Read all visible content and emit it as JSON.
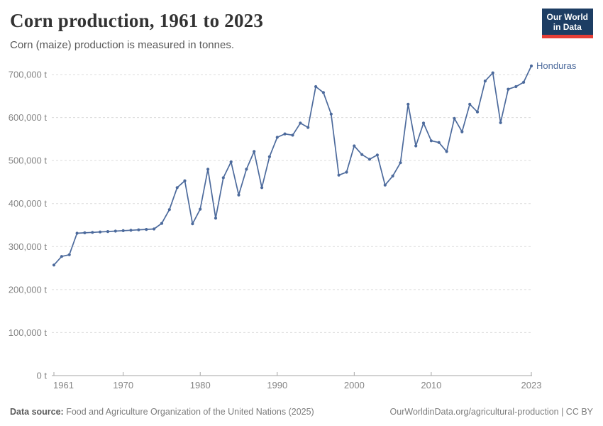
{
  "header": {
    "title": "Corn production, 1961 to 2023",
    "subtitle": "Corn (maize) production is measured in tonnes.",
    "logo": {
      "line1": "Our World",
      "line2": "in Data"
    }
  },
  "chart_data": {
    "type": "line",
    "title": "Corn production, 1961 to 2023",
    "unit": "tonnes",
    "grid": "horizontal-dashed",
    "legend_position": "end-of-line-label",
    "xlim": [
      1961,
      2023
    ],
    "ylim": [
      0,
      700000
    ],
    "x_ticks": [
      1961,
      1970,
      1980,
      1990,
      2000,
      2010,
      2023
    ],
    "y_ticks": [
      0,
      100000,
      200000,
      300000,
      400000,
      500000,
      600000,
      700000
    ],
    "y_tick_labels": [
      "0 t",
      "100,000 t",
      "200,000 t",
      "300,000 t",
      "400,000 t",
      "500,000 t",
      "600,000 t",
      "700,000 t"
    ],
    "series": [
      {
        "name": "Honduras",
        "color": "#4C6A9C",
        "x": [
          1961,
          1962,
          1963,
          1964,
          1965,
          1966,
          1967,
          1968,
          1969,
          1970,
          1971,
          1972,
          1973,
          1974,
          1975,
          1976,
          1977,
          1978,
          1979,
          1980,
          1981,
          1982,
          1983,
          1984,
          1985,
          1986,
          1987,
          1988,
          1989,
          1990,
          1991,
          1992,
          1993,
          1994,
          1995,
          1996,
          1997,
          1998,
          1999,
          2000,
          2001,
          2002,
          2003,
          2004,
          2005,
          2006,
          2007,
          2008,
          2009,
          2010,
          2011,
          2012,
          2013,
          2014,
          2015,
          2016,
          2017,
          2018,
          2019,
          2020,
          2021,
          2022,
          2023
        ],
        "values": [
          257000,
          277000,
          281000,
          331000,
          332000,
          333000,
          334000,
          335000,
          336000,
          337000,
          338000,
          339000,
          340000,
          341000,
          354000,
          386000,
          437000,
          453000,
          353000,
          387000,
          480000,
          366000,
          460000,
          497000,
          420000,
          480000,
          521000,
          437000,
          509000,
          554000,
          562000,
          559000,
          587000,
          577000,
          672000,
          658000,
          608000,
          466000,
          473000,
          534000,
          514000,
          503000,
          513000,
          443000,
          464000,
          495000,
          631000,
          534000,
          587000,
          546000,
          542000,
          521000,
          598000,
          567000,
          631000,
          613000,
          685000,
          704000,
          588000,
          666000,
          672000,
          682000,
          720000
        ]
      }
    ]
  },
  "footer": {
    "source_label": "Data source:",
    "source_text": " Food and Agriculture Organization of the United Nations (2025)",
    "right_text": "OurWorldinData.org/agricultural-production | CC BY"
  },
  "colors": {
    "line": "#4C6A9C",
    "grid": "#dcdcdc",
    "axis": "#a5a5a5",
    "tick_label": "#858585",
    "logo_bg": "#1D3D63",
    "logo_accent": "#E63E36"
  }
}
